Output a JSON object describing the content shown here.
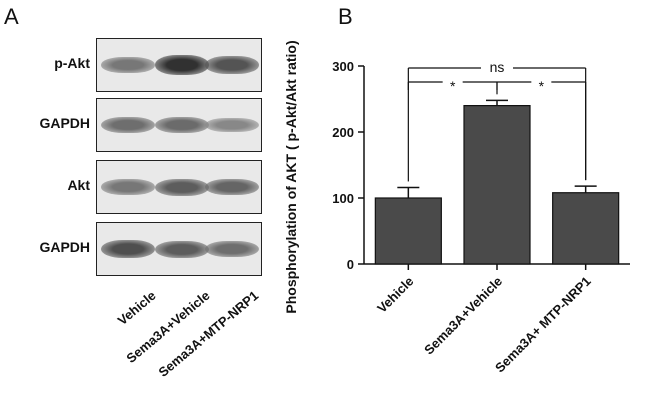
{
  "panelA": {
    "letter": "A",
    "blots": [
      {
        "label": "p-Akt",
        "intensities": [
          0.55,
          0.95,
          0.75
        ]
      },
      {
        "label": "GAPDH",
        "intensities": [
          0.6,
          0.62,
          0.45
        ]
      },
      {
        "label": "Akt",
        "intensities": [
          0.55,
          0.7,
          0.65
        ]
      },
      {
        "label": "GAPDH",
        "intensities": [
          0.78,
          0.7,
          0.6
        ]
      }
    ],
    "lanes": [
      "Vehicle",
      "Sema3A+Vehicle",
      "Sema3A+MTP-NRP1"
    ]
  },
  "panelB": {
    "letter": "B",
    "ylabel": "Phosphorylation of AKT ( p-Akt/Akt ratio)"
  },
  "chart_data": {
    "type": "bar",
    "categories": [
      "Vehicle",
      "Sema3A+Vehicle",
      "Sema3A+ MTP-NRP1"
    ],
    "values": [
      100,
      240,
      108
    ],
    "errors": [
      16,
      8,
      10
    ],
    "ylabel": "Phosphorylation of AKT ( p-Akt/Akt ratio)",
    "ylim": [
      0,
      300
    ],
    "yticks": [
      0,
      100,
      200,
      300
    ],
    "grid": false,
    "bar_color": "#4a4a4a",
    "significance": [
      {
        "from": 0,
        "to": 2,
        "label": "ns"
      },
      {
        "from": 0,
        "to": 1,
        "label": "*"
      },
      {
        "from": 1,
        "to": 2,
        "label": "*"
      }
    ]
  }
}
